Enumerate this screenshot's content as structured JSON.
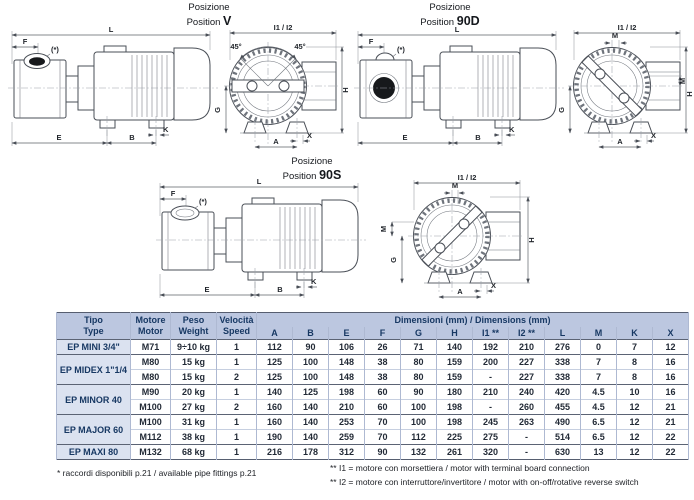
{
  "drawings": {
    "labels": {
      "posizione": "Posizione",
      "position": "Position"
    },
    "positions": {
      "v": "V",
      "d": "90D",
      "s": "90S"
    },
    "dims": {
      "L": "L",
      "F": "F",
      "E": "E",
      "B": "B",
      "K": "K",
      "G": "G",
      "H": "H",
      "A": "A",
      "X": "X",
      "M": "M",
      "I12": "I1 / I2",
      "angle": "45°",
      "star": "(*)"
    }
  },
  "table": {
    "headers": {
      "tipo": {
        "l1": "Tipo",
        "l2": "Type"
      },
      "motore": {
        "l1": "Motore",
        "l2": "Motor"
      },
      "peso": {
        "l1": "Peso",
        "l2": "Weight"
      },
      "velocita": {
        "l1": "Velocità",
        "l2": "Speed"
      },
      "dimensions_span": "Dimensioni (mm) / Dimensions (mm)",
      "dim_columns": [
        "A",
        "B",
        "E",
        "F",
        "G",
        "H",
        "I1 **",
        "I2 **",
        "L",
        "M",
        "K",
        "X"
      ]
    },
    "groups": [
      {
        "type": "EP MINI 3/4\"",
        "rows": [
          {
            "motor": "M71",
            "weight": "9÷10 kg",
            "speed": "1",
            "dims": [
              "112",
              "90",
              "106",
              "26",
              "71",
              "140",
              "192",
              "210",
              "276",
              "0",
              "7",
              "12"
            ]
          }
        ]
      },
      {
        "type": "EP MIDEX 1\"1/4",
        "rows": [
          {
            "motor": "M80",
            "weight": "15 kg",
            "speed": "1",
            "dims": [
              "125",
              "100",
              "148",
              "38",
              "80",
              "159",
              "200",
              "227",
              "338",
              "7",
              "8",
              "16"
            ]
          },
          {
            "motor": "M80",
            "weight": "15 kg",
            "speed": "2",
            "dims": [
              "125",
              "100",
              "148",
              "38",
              "80",
              "159",
              "-",
              "227",
              "338",
              "7",
              "8",
              "16"
            ]
          }
        ]
      },
      {
        "type": "EP MINOR 40",
        "rows": [
          {
            "motor": "M90",
            "weight": "20 kg",
            "speed": "1",
            "dims": [
              "140",
              "125",
              "198",
              "60",
              "90",
              "180",
              "210",
              "240",
              "420",
              "4.5",
              "10",
              "16"
            ]
          },
          {
            "motor": "M100",
            "weight": "27 kg",
            "speed": "2",
            "dims": [
              "160",
              "140",
              "210",
              "60",
              "100",
              "198",
              "-",
              "260",
              "455",
              "4.5",
              "12",
              "21"
            ]
          }
        ]
      },
      {
        "type": "EP MAJOR 60",
        "rows": [
          {
            "motor": "M100",
            "weight": "31 kg",
            "speed": "1",
            "dims": [
              "160",
              "140",
              "253",
              "70",
              "100",
              "198",
              "245",
              "263",
              "490",
              "6.5",
              "12",
              "21"
            ]
          },
          {
            "motor": "M112",
            "weight": "38 kg",
            "speed": "1",
            "dims": [
              "190",
              "140",
              "259",
              "70",
              "112",
              "225",
              "275",
              "-",
              "514",
              "6.5",
              "12",
              "22"
            ]
          }
        ]
      },
      {
        "type": "EP MAXI 80",
        "rows": [
          {
            "motor": "M132",
            "weight": "68 kg",
            "speed": "1",
            "dims": [
              "216",
              "178",
              "312",
              "90",
              "132",
              "261",
              "320",
              "-",
              "630",
              "13",
              "12",
              "22"
            ]
          }
        ]
      }
    ]
  },
  "footnotes": {
    "left": "* raccordi disponibili p.21 / available pipe fittings p.21",
    "right1": "** I1 = motore con morsettiera / motor with terminal board connection",
    "right2": "** I2 = motore con interruttore/invertitore / motor with on-off/rotative reverse switch"
  },
  "colors": {
    "header_bg": "#bcc7e0",
    "type_col_bg": "#dbe2f0",
    "navy_text": "#173863",
    "dark_border": "#565e70",
    "light_border": "#aeb9d2"
  }
}
